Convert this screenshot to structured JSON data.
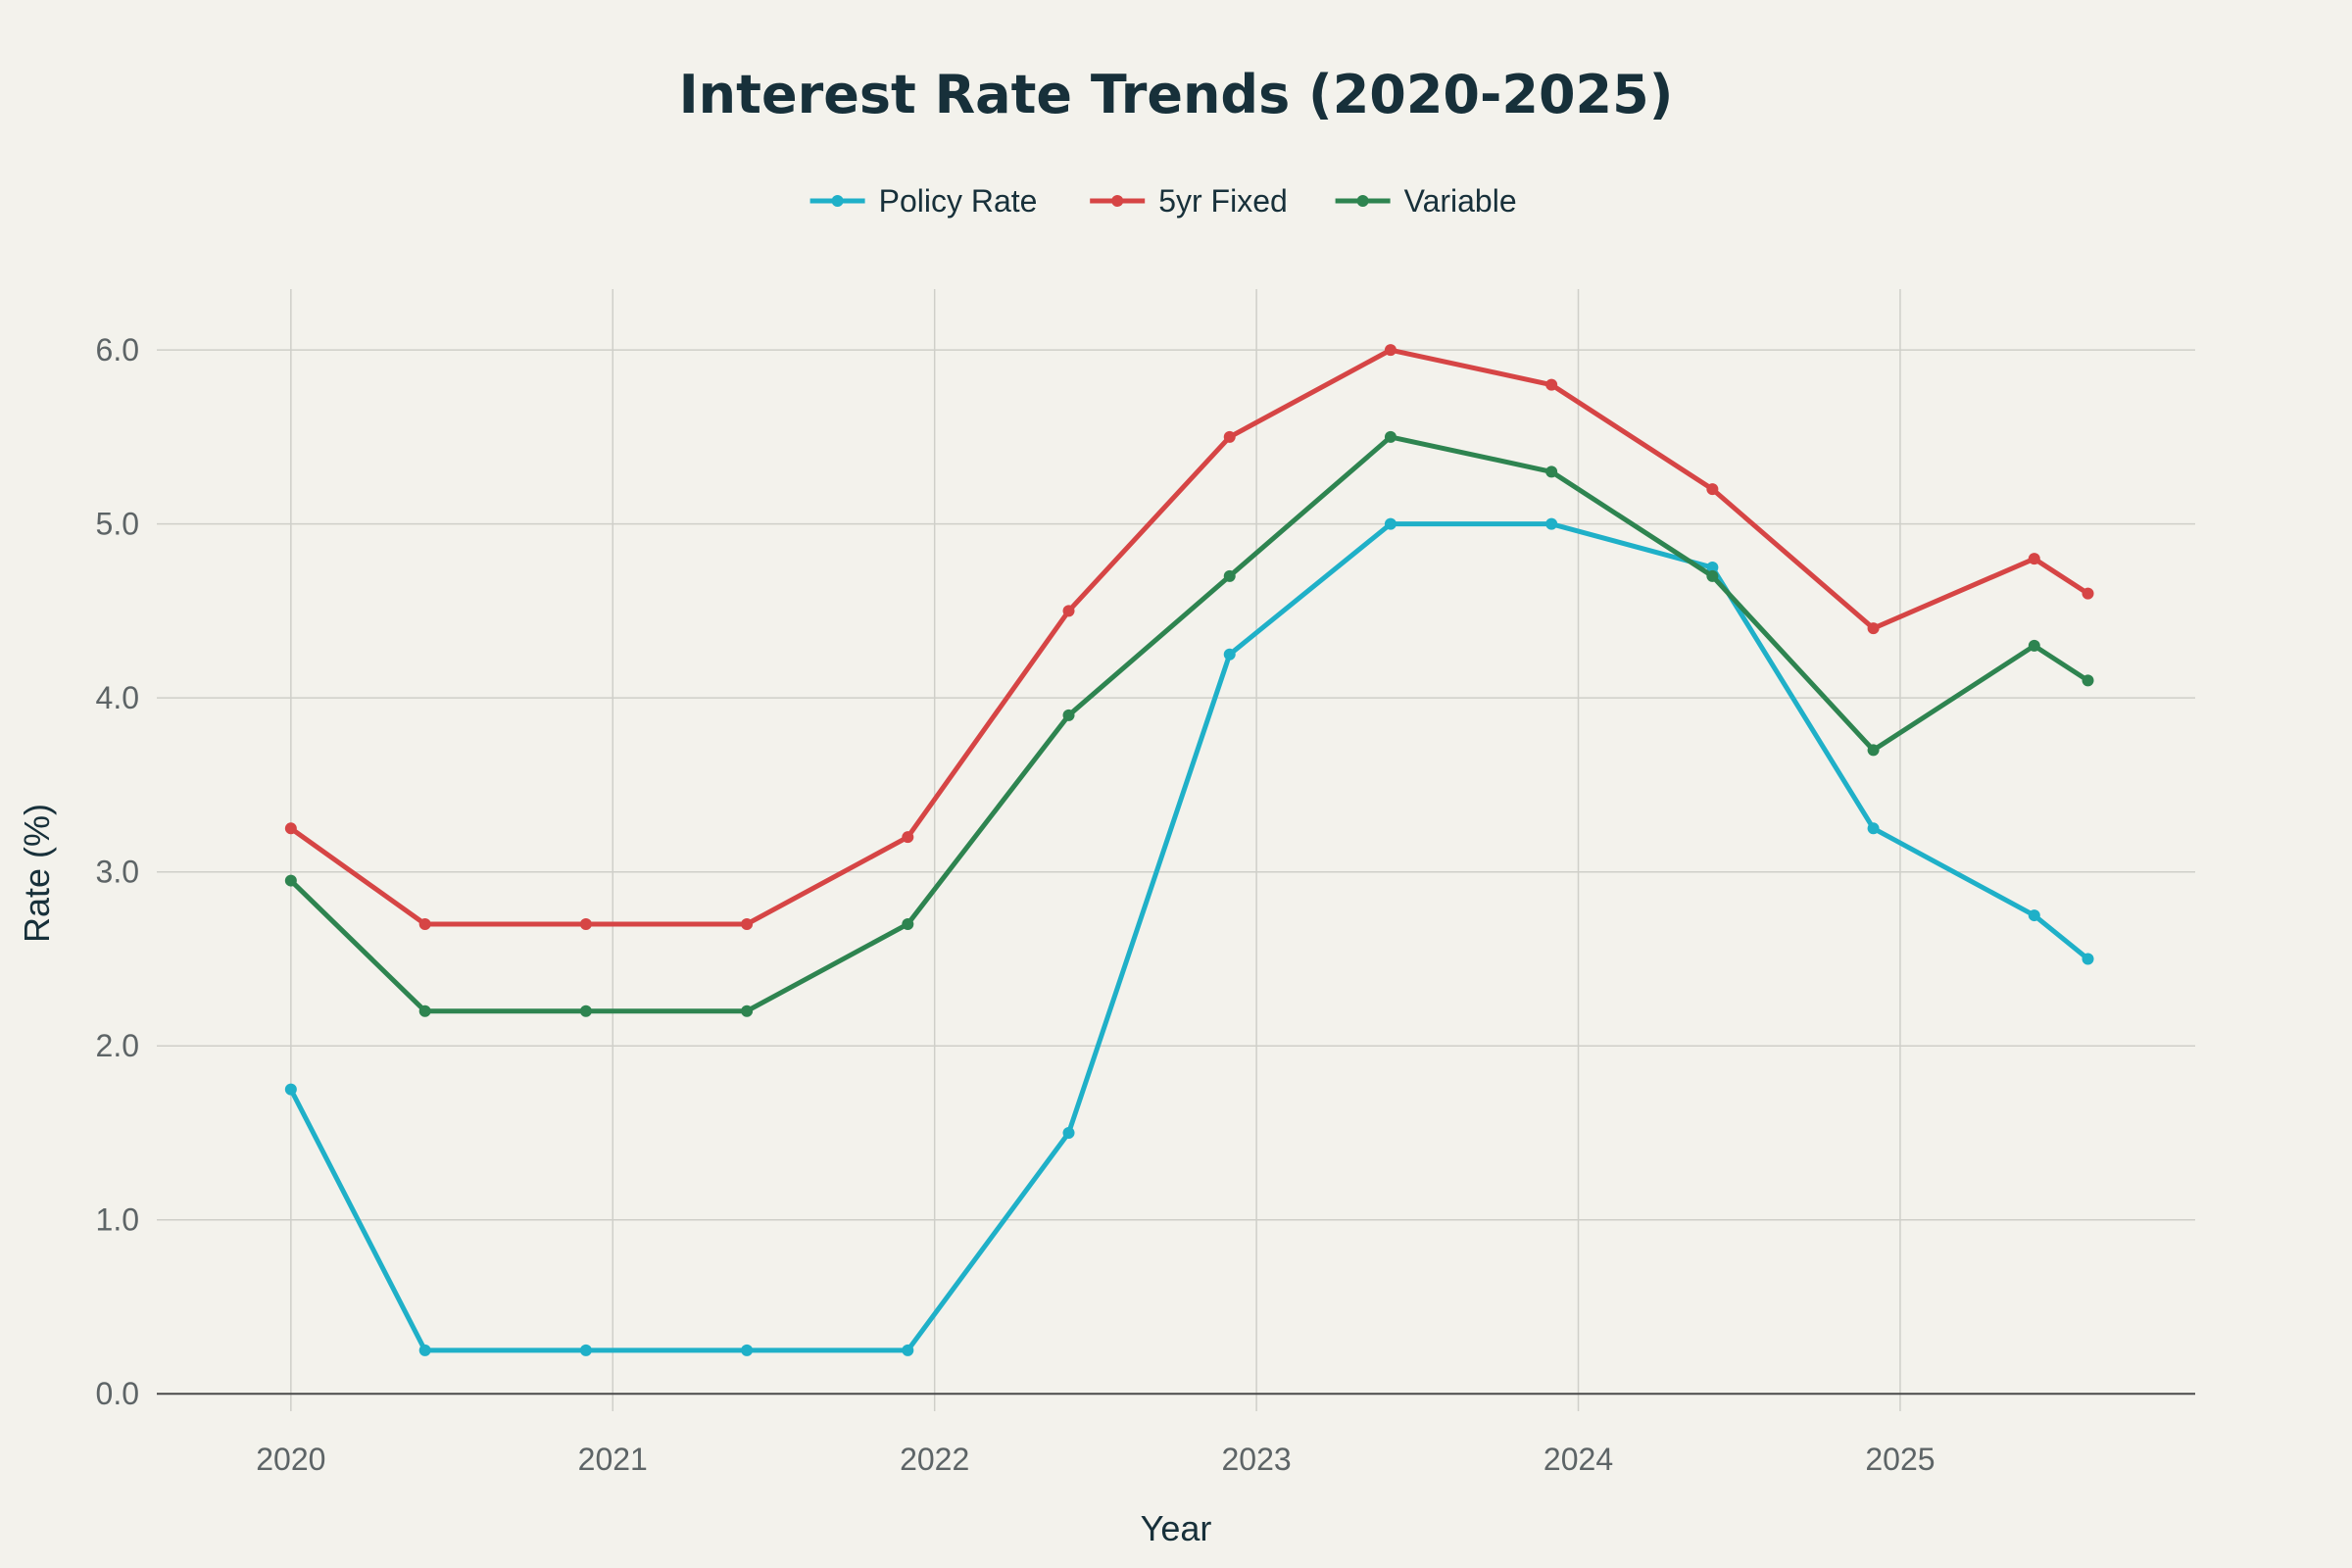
{
  "chart_data": {
    "type": "line",
    "title": "Interest Rate Trends (2020-2025)",
    "xlabel": "Year",
    "ylabel": "Rate (%)",
    "x_axis_type": "date",
    "x_range": [
      "2019-08-01",
      "2025-12-01"
    ],
    "ylim": [
      -0.1,
      6.35
    ],
    "x_ticks": [
      "2020",
      "2021",
      "2022",
      "2023",
      "2024",
      "2025"
    ],
    "y_ticks": [
      "0.0",
      "1.0",
      "2.0",
      "3.0",
      "4.0",
      "5.0",
      "6.0"
    ],
    "grid": true,
    "legend_position": "top-center",
    "x": [
      "2020-01",
      "2020-06",
      "2020-12",
      "2021-06",
      "2021-12",
      "2022-06",
      "2022-12",
      "2023-06",
      "2023-12",
      "2024-06",
      "2024-12",
      "2025-06",
      "2025-08"
    ],
    "series": [
      {
        "name": "Policy Rate",
        "color": "#1fb0c8",
        "values": [
          1.75,
          0.25,
          0.25,
          0.25,
          0.25,
          1.5,
          4.25,
          5.0,
          5.0,
          4.75,
          3.25,
          2.75,
          2.5
        ]
      },
      {
        "name": "5yr Fixed",
        "color": "#d64545",
        "values": [
          3.25,
          2.7,
          2.7,
          2.7,
          3.2,
          4.5,
          5.5,
          6.0,
          5.8,
          5.2,
          4.4,
          4.8,
          4.6
        ]
      },
      {
        "name": "Variable",
        "color": "#2e8450",
        "values": [
          2.95,
          2.2,
          2.2,
          2.2,
          2.7,
          3.9,
          4.7,
          5.5,
          5.3,
          4.7,
          3.7,
          4.3,
          4.1
        ]
      }
    ]
  }
}
